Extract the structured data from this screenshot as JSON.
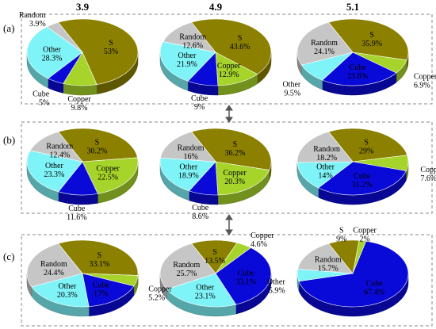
{
  "column_headers": [
    "3.9",
    "4.9",
    "5.1"
  ],
  "row_labels": [
    "(a)",
    "(b)",
    "(c)"
  ],
  "colors": {
    "S": "#8c8000",
    "Copper": "#a6d42a",
    "Cube": "#0a0ad8",
    "Other": "#7ff4f8",
    "Random": "#c6c6c6"
  },
  "chart_data": [
    {
      "type": "pie",
      "row": "(a)",
      "column": "3.9",
      "categories": [
        "S",
        "Copper",
        "Cube",
        "Other",
        "Random"
      ],
      "values": [
        53,
        9.8,
        5,
        28.3,
        3.9
      ],
      "labels": [
        "53%",
        "9.8%",
        "5%",
        "28.3%",
        "3.9%"
      ]
    },
    {
      "type": "pie",
      "row": "(a)",
      "column": "4.9",
      "categories": [
        "S",
        "Copper",
        "Cube",
        "Other",
        "Random"
      ],
      "values": [
        43.6,
        12.9,
        9,
        21.9,
        12.6
      ],
      "labels": [
        "43.6%",
        "12.9%",
        "9%",
        "21.9%",
        "12.6%"
      ]
    },
    {
      "type": "pie",
      "row": "(a)",
      "column": "5.1",
      "categories": [
        "S",
        "Copper",
        "Cube",
        "Other",
        "Random"
      ],
      "values": [
        35.9,
        6.9,
        23.6,
        9.5,
        24.1
      ],
      "labels": [
        "35.9%",
        "6.9%",
        "23.6%",
        "9.5%",
        "24.1%"
      ]
    },
    {
      "type": "pie",
      "row": "(b)",
      "column": "3.9",
      "categories": [
        "S",
        "Copper",
        "Cube",
        "Other",
        "Random"
      ],
      "values": [
        30.2,
        22.5,
        11.6,
        23.3,
        12.4
      ],
      "labels": [
        "30.2%",
        "22.5%",
        "11.6%",
        "23.3%",
        "12.4%"
      ]
    },
    {
      "type": "pie",
      "row": "(b)",
      "column": "4.9",
      "categories": [
        "S",
        "Copper",
        "Cube",
        "Other",
        "Random"
      ],
      "values": [
        36.2,
        20.3,
        8.6,
        18.9,
        16
      ],
      "labels": [
        "36.2%",
        "20.3%",
        "8.6%",
        "18.9%",
        "16%"
      ]
    },
    {
      "type": "pie",
      "row": "(b)",
      "column": "5.1",
      "categories": [
        "S",
        "Copper",
        "Cube",
        "Other",
        "Random"
      ],
      "values": [
        29,
        7.6,
        31.2,
        14,
        18.2
      ],
      "labels": [
        "29%",
        "7.6%",
        "31.2%",
        "14%",
        "18.2%"
      ]
    },
    {
      "type": "pie",
      "row": "(c)",
      "column": "3.9",
      "categories": [
        "S",
        "Copper",
        "Cube",
        "Other",
        "Random"
      ],
      "values": [
        33.1,
        5.2,
        17,
        20.3,
        24.4
      ],
      "labels": [
        "33.1%",
        "5.2%",
        "17%",
        "20.3%",
        "24.4%"
      ]
    },
    {
      "type": "pie",
      "row": "(c)",
      "column": "4.9",
      "categories": [
        "S",
        "Copper",
        "Cube",
        "Other",
        "Random"
      ],
      "values": [
        13.5,
        4.6,
        33.1,
        23.1,
        25.7
      ],
      "labels": [
        "13.5%",
        "4.6%",
        "33.1%",
        "23.1%",
        "25.7%"
      ]
    },
    {
      "type": "pie",
      "row": "(c)",
      "column": "5.1",
      "categories": [
        "S",
        "Copper",
        "Cube",
        "Other",
        "Random"
      ],
      "values": [
        9,
        2,
        67.4,
        5.9,
        15.7
      ],
      "labels": [
        "9%",
        "2%",
        "67.4%",
        "5.9%",
        "15.7%"
      ]
    }
  ]
}
